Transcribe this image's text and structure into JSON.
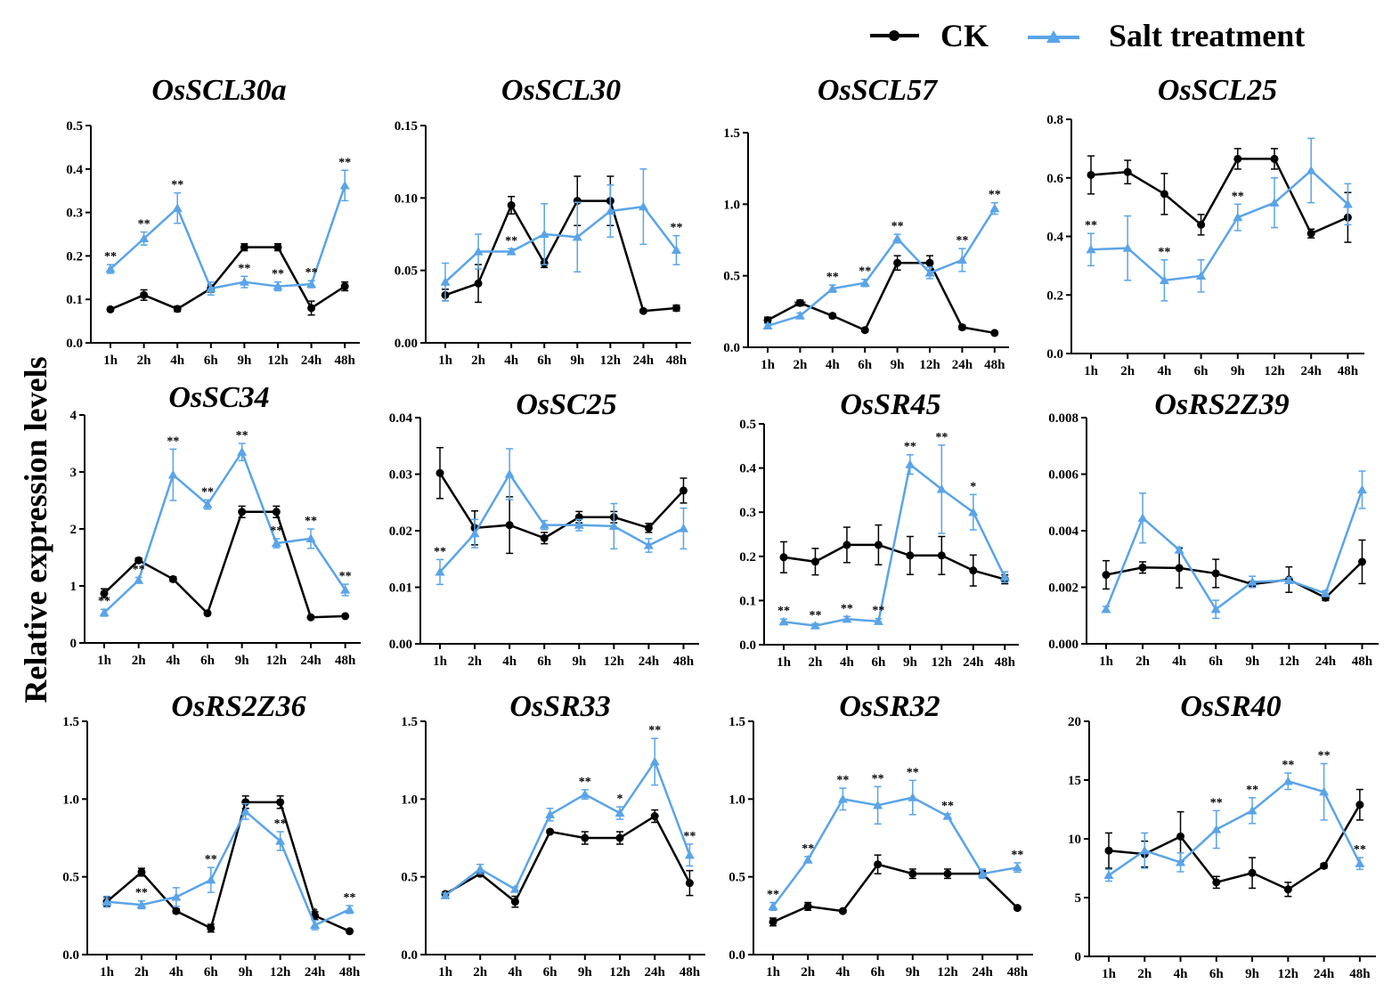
{
  "chart_data": {
    "type": "line",
    "ylabel": "Relative expression levels",
    "legend": {
      "position": "top-right",
      "entries": [
        {
          "name": "CK",
          "color": "#000000",
          "marker": "circle"
        },
        {
          "name": "Salt treatment",
          "color": "#5aa4e8",
          "marker": "triangle"
        }
      ]
    },
    "x_categories": [
      "1h",
      "2h",
      "4h",
      "6h",
      "9h",
      "12h",
      "24h",
      "48h"
    ],
    "panels": [
      {
        "title": "OsSCL30a",
        "ylim": [
          0,
          0.5
        ],
        "yticks": [
          "0.0",
          "0.1",
          "0.2",
          "0.3",
          "0.4",
          "0.5"
        ],
        "ck": [
          0.077,
          0.11,
          0.078,
          0.125,
          0.22,
          0.22,
          0.08,
          0.13
        ],
        "ck_err": [
          0.004,
          0.012,
          0.006,
          0.008,
          0.008,
          0.008,
          0.016,
          0.01
        ],
        "salt": [
          0.17,
          0.24,
          0.31,
          0.125,
          0.14,
          0.13,
          0.135,
          0.362
        ],
        "salt_err": [
          0.01,
          0.015,
          0.035,
          0.015,
          0.013,
          0.01,
          0.008,
          0.035
        ],
        "sig": [
          "**",
          "**",
          "**",
          "",
          "**",
          "**",
          "**",
          "**"
        ]
      },
      {
        "title": "OsSCL30",
        "ylim": [
          0,
          0.15
        ],
        "yticks": [
          "0.00",
          "0.05",
          "0.10",
          "0.15"
        ],
        "ck": [
          0.033,
          0.041,
          0.095,
          0.055,
          0.098,
          0.098,
          0.022,
          0.024
        ],
        "ck_err": [
          0.004,
          0.013,
          0.006,
          0.003,
          0.017,
          0.017,
          0.001,
          0.002
        ],
        "salt": [
          0.042,
          0.063,
          0.063,
          0.075,
          0.073,
          0.091,
          0.094,
          0.064
        ],
        "salt_err": [
          0.013,
          0.012,
          0.002,
          0.021,
          0.024,
          0.018,
          0.026,
          0.01
        ],
        "sig": [
          "",
          "",
          "**",
          "",
          "",
          "",
          "",
          "**"
        ]
      },
      {
        "title": "OsSCL57",
        "ylim": [
          0,
          1.5
        ],
        "yticks": [
          "0.0",
          "0.5",
          "1.0",
          "1.5"
        ],
        "ck": [
          0.19,
          0.31,
          0.22,
          0.12,
          0.59,
          0.59,
          0.14,
          0.1
        ],
        "ck_err": [
          0.02,
          0.02,
          0.015,
          0.01,
          0.05,
          0.05,
          0.015,
          0.01
        ],
        "salt": [
          0.15,
          0.22,
          0.41,
          0.45,
          0.76,
          0.52,
          0.61,
          0.97
        ],
        "salt_err": [
          0.015,
          0.02,
          0.025,
          0.025,
          0.03,
          0.04,
          0.08,
          0.04
        ],
        "sig": [
          "",
          "**",
          "**",
          "**",
          "**",
          "",
          "**",
          "**"
        ]
      },
      {
        "title": "OsSCL25",
        "ylim": [
          0,
          0.8
        ],
        "yticks": [
          "0.0",
          "0.2",
          "0.4",
          "0.6",
          "0.8"
        ],
        "ck": [
          0.61,
          0.62,
          0.545,
          0.44,
          0.665,
          0.665,
          0.41,
          0.465
        ],
        "ck_err": [
          0.065,
          0.04,
          0.07,
          0.035,
          0.035,
          0.035,
          0.015,
          0.085
        ],
        "salt": [
          0.355,
          0.36,
          0.25,
          0.265,
          0.465,
          0.515,
          0.625,
          0.51
        ],
        "salt_err": [
          0.055,
          0.11,
          0.07,
          0.055,
          0.045,
          0.085,
          0.11,
          0.07
        ],
        "sig": [
          "**",
          "",
          "**",
          "",
          "**",
          "",
          "",
          ""
        ]
      },
      {
        "title": "OsSC34",
        "ylim": [
          0,
          4
        ],
        "yticks": [
          "0",
          "1",
          "2",
          "3",
          "4"
        ],
        "ck": [
          0.87,
          1.45,
          1.12,
          0.52,
          2.3,
          2.3,
          0.45,
          0.47
        ],
        "ck_err": [
          0.08,
          0.04,
          0.04,
          0.03,
          0.1,
          0.1,
          0.02,
          0.02
        ],
        "salt": [
          0.53,
          1.1,
          2.95,
          2.43,
          3.35,
          1.75,
          1.83,
          0.93
        ],
        "salt_err": [
          0.06,
          0.05,
          0.45,
          0.08,
          0.15,
          0.08,
          0.17,
          0.1
        ],
        "sig": [
          "**",
          "**",
          "**",
          "**",
          "**",
          "**",
          "**",
          "**"
        ]
      },
      {
        "title": "OsSC25",
        "ylim": [
          0,
          0.04
        ],
        "yticks": [
          "0.00",
          "0.01",
          "0.02",
          "0.03",
          "0.04"
        ],
        "ck": [
          0.0302,
          0.0205,
          0.021,
          0.0187,
          0.0224,
          0.0224,
          0.0205,
          0.0271
        ],
        "ck_err": [
          0.0045,
          0.003,
          0.005,
          0.001,
          0.001,
          0.001,
          0.0008,
          0.0022
        ],
        "salt": [
          0.0127,
          0.0195,
          0.03,
          0.021,
          0.021,
          0.0208,
          0.0174,
          0.0204
        ],
        "salt_err": [
          0.0022,
          0.0025,
          0.0045,
          0.0008,
          0.001,
          0.004,
          0.0012,
          0.0036
        ],
        "sig": [
          "**",
          "",
          "",
          "",
          "",
          "",
          "",
          ""
        ]
      },
      {
        "title": "OsSR45",
        "ylim": [
          0,
          0.5
        ],
        "yticks": [
          "0.0",
          "0.1",
          "0.2",
          "0.3",
          "0.4",
          "0.5"
        ],
        "ck": [
          0.198,
          0.188,
          0.226,
          0.226,
          0.202,
          0.202,
          0.168,
          0.148
        ],
        "ck_err": [
          0.035,
          0.03,
          0.04,
          0.045,
          0.043,
          0.043,
          0.035,
          0.01
        ],
        "salt": [
          0.052,
          0.043,
          0.058,
          0.053,
          0.408,
          0.352,
          0.3,
          0.153
        ],
        "salt_err": [
          0.006,
          0.005,
          0.006,
          0.006,
          0.022,
          0.1,
          0.04,
          0.012
        ],
        "sig": [
          "**",
          "**",
          "**",
          "**",
          "**",
          "**",
          "*",
          ""
        ]
      },
      {
        "title": "OsRS2Z39",
        "ylim": [
          0,
          0.008
        ],
        "yticks": [
          "0.000",
          "0.002",
          "0.004",
          "0.006",
          "0.008"
        ],
        "ck": [
          0.00244,
          0.0027,
          0.00268,
          0.00249,
          0.00211,
          0.00227,
          0.00163,
          0.0029
        ],
        "ck_err": [
          0.0005,
          0.0002,
          0.0007,
          0.0005,
          0.0001,
          0.00045,
          0.0001,
          0.00077
        ],
        "salt": [
          0.00122,
          0.00445,
          0.00332,
          0.00122,
          0.00219,
          0.00224,
          0.00178,
          0.00545
        ],
        "salt_err": [
          0.0001,
          0.00088,
          0.0001,
          0.00032,
          0.0002,
          0.0001,
          0.0001,
          0.00066
        ],
        "sig": [
          "",
          "",
          "",
          "",
          "",
          "",
          "",
          ""
        ]
      },
      {
        "title": "OsRS2Z36",
        "ylim": [
          0,
          1.5
        ],
        "yticks": [
          "0.0",
          "0.5",
          "1.0",
          "1.5"
        ],
        "ck": [
          0.34,
          0.53,
          0.28,
          0.17,
          0.98,
          0.98,
          0.25,
          0.15
        ],
        "ck_err": [
          0.03,
          0.025,
          0.015,
          0.025,
          0.04,
          0.04,
          0.025,
          0.01
        ],
        "salt": [
          0.34,
          0.32,
          0.37,
          0.48,
          0.92,
          0.73,
          0.19,
          0.29
        ],
        "salt_err": [
          0.035,
          0.025,
          0.06,
          0.08,
          0.05,
          0.06,
          0.03,
          0.025
        ],
        "sig": [
          "",
          "**",
          "",
          "**",
          "",
          "**",
          "*",
          "**"
        ]
      },
      {
        "title": "OsSR33",
        "ylim": [
          0,
          1.5
        ],
        "yticks": [
          "0.0",
          "0.5",
          "1.0",
          "1.5"
        ],
        "ck": [
          0.39,
          0.52,
          0.34,
          0.79,
          0.75,
          0.75,
          0.89,
          0.46
        ],
        "ck_err": [
          0.01,
          0.015,
          0.035,
          0.01,
          0.04,
          0.04,
          0.04,
          0.08
        ],
        "salt": [
          0.38,
          0.55,
          0.42,
          0.9,
          1.03,
          0.91,
          1.24,
          0.64
        ],
        "salt_err": [
          0.015,
          0.03,
          0.015,
          0.04,
          0.03,
          0.04,
          0.15,
          0.07
        ],
        "sig": [
          "",
          "",
          "",
          "",
          "**",
          "*",
          "**",
          "**"
        ]
      },
      {
        "title": "OsSR32",
        "ylim": [
          0,
          1.5
        ],
        "yticks": [
          "0.0",
          "0.5",
          "1.0",
          "1.5"
        ],
        "ck": [
          0.21,
          0.31,
          0.28,
          0.58,
          0.52,
          0.52,
          0.52,
          0.3
        ],
        "ck_err": [
          0.025,
          0.025,
          0.01,
          0.06,
          0.03,
          0.03,
          0.02,
          0.01
        ],
        "salt": [
          0.31,
          0.61,
          1.0,
          0.96,
          1.01,
          0.89,
          0.52,
          0.56
        ],
        "salt_err": [
          0.025,
          0.02,
          0.07,
          0.12,
          0.11,
          0.015,
          0.03,
          0.03
        ],
        "sig": [
          "**",
          "**",
          "**",
          "**",
          "**",
          "**",
          "",
          "**"
        ]
      },
      {
        "title": "OsSR40",
        "ylim": [
          0,
          20
        ],
        "yticks": [
          "0",
          "5",
          "10",
          "15",
          "20"
        ],
        "ck": [
          9.0,
          8.7,
          10.2,
          6.3,
          7.1,
          5.7,
          7.7,
          12.9
        ],
        "ck_err": [
          1.5,
          1.1,
          2.1,
          0.5,
          1.3,
          0.6,
          0.2,
          1.3
        ],
        "salt": [
          6.9,
          9.0,
          8.0,
          10.8,
          12.4,
          14.9,
          14.0,
          7.9
        ],
        "salt_err": [
          0.5,
          1.5,
          0.8,
          1.6,
          1.1,
          0.7,
          2.4,
          0.5
        ],
        "sig": [
          "",
          "",
          "",
          "**",
          "**",
          "**",
          "**",
          "**"
        ]
      }
    ]
  }
}
